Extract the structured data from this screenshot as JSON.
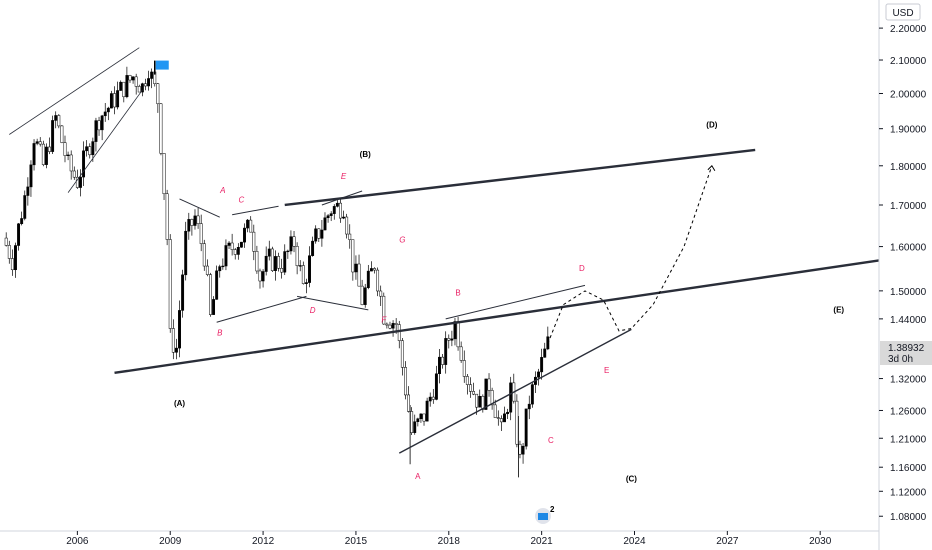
{
  "currency": "USD",
  "current_price_label": "1.38932",
  "timeframe_label": "3d 0h",
  "logo_badge": "2",
  "colors": {
    "up": "#000000",
    "down": "#ffffff",
    "wave_red": "#e91e63",
    "flag": "#2196f3"
  },
  "chart_data": {
    "type": "candlestick",
    "title": "",
    "xlabel": "",
    "ylabel": "",
    "scale": "log",
    "x_ticks": [
      "2006",
      "2009",
      "2012",
      "2015",
      "2018",
      "2021",
      "2024",
      "2027",
      "2030"
    ],
    "y_ticks": [
      "2.20000",
      "2.10000",
      "2.00000",
      "1.90000",
      "1.80000",
      "1.70000",
      "1.60000",
      "1.50000",
      "1.44000",
      "1.38932",
      "1.32000",
      "1.26000",
      "1.21000",
      "1.16000",
      "1.12000",
      "1.08000"
    ],
    "xlim": [
      2003.5,
      2031.9
    ],
    "ylim": [
      1.057,
      2.292
    ],
    "current_price": 1.38932,
    "price_path": [
      [
        2003.6,
        1.62
      ],
      [
        2003.9,
        1.57
      ],
      [
        2004.3,
        1.72
      ],
      [
        2004.6,
        1.88
      ],
      [
        2004.9,
        1.8
      ],
      [
        2005.3,
        1.93
      ],
      [
        2005.7,
        1.8
      ],
      [
        2006.0,
        1.76
      ],
      [
        2006.4,
        1.86
      ],
      [
        2006.7,
        1.93
      ],
      [
        2007.0,
        1.96
      ],
      [
        2007.4,
        2.01
      ],
      [
        2007.8,
        2.05
      ],
      [
        2008.1,
        2.02
      ],
      [
        2008.3,
        2.08
      ],
      [
        2008.6,
        1.98
      ],
      [
        2008.9,
        1.62
      ],
      [
        2009.0,
        1.4
      ],
      [
        2009.2,
        1.38
      ],
      [
        2009.5,
        1.62
      ],
      [
        2009.8,
        1.67
      ],
      [
        2010.1,
        1.58
      ],
      [
        2010.3,
        1.44
      ],
      [
        2010.6,
        1.56
      ],
      [
        2010.9,
        1.59
      ],
      [
        2011.3,
        1.62
      ],
      [
        2011.6,
        1.65
      ],
      [
        2011.9,
        1.53
      ],
      [
        2012.2,
        1.57
      ],
      [
        2012.6,
        1.56
      ],
      [
        2013.0,
        1.61
      ],
      [
        2013.3,
        1.51
      ],
      [
        2013.7,
        1.62
      ],
      [
        2014.2,
        1.69
      ],
      [
        2014.6,
        1.7
      ],
      [
        2014.9,
        1.56
      ],
      [
        2015.2,
        1.48
      ],
      [
        2015.6,
        1.56
      ],
      [
        2015.9,
        1.45
      ],
      [
        2016.3,
        1.43
      ],
      [
        2016.6,
        1.3
      ],
      [
        2016.8,
        1.22
      ],
      [
        2017.2,
        1.25
      ],
      [
        2017.6,
        1.32
      ],
      [
        2018.0,
        1.4
      ],
      [
        2018.2,
        1.43
      ],
      [
        2018.6,
        1.32
      ],
      [
        2019.0,
        1.27
      ],
      [
        2019.3,
        1.31
      ],
      [
        2019.7,
        1.22
      ],
      [
        2020.0,
        1.3
      ],
      [
        2020.3,
        1.17
      ],
      [
        2020.6,
        1.28
      ],
      [
        2020.9,
        1.33
      ],
      [
        2021.2,
        1.389
      ]
    ],
    "projection": [
      [
        2021.2,
        1.389
      ],
      [
        2021.7,
        1.47
      ],
      [
        2022.4,
        1.5
      ],
      [
        2023.0,
        1.48
      ],
      [
        2023.5,
        1.415
      ],
      [
        2023.9,
        1.42
      ],
      [
        2024.6,
        1.47
      ],
      [
        2025.6,
        1.6
      ],
      [
        2026.5,
        1.8
      ]
    ],
    "trendlines": [
      {
        "name": "primary-support-line",
        "points": [
          [
            2007.2,
            1.331
          ],
          [
            2031.9,
            1.568
          ]
        ],
        "width": 2.4
      },
      {
        "name": "primary-resistance-line",
        "points": [
          [
            2012.7,
            1.7
          ],
          [
            2027.9,
            1.842
          ]
        ],
        "width": 2.4
      },
      {
        "name": "wave-c-lower-line",
        "points": [
          [
            2016.4,
            1.184
          ],
          [
            2023.9,
            1.418
          ]
        ],
        "width": 1.4
      },
      {
        "name": "wave-c-upper-line",
        "points": [
          [
            2017.9,
            1.44
          ],
          [
            2022.4,
            1.512
          ]
        ],
        "width": 1.0
      },
      {
        "name": "early-wedge-upper",
        "points": [
          [
            2003.8,
            1.884
          ],
          [
            2008.0,
            2.138
          ]
        ],
        "width": 0.8
      },
      {
        "name": "early-wedge-lower",
        "points": [
          [
            2005.7,
            1.731
          ],
          [
            2008.1,
            2.01
          ]
        ],
        "width": 0.8
      },
      {
        "name": "triangle-lower-1",
        "points": [
          [
            2010.5,
            1.433
          ],
          [
            2013.4,
            1.488
          ]
        ],
        "width": 1.0
      },
      {
        "name": "triangle-lower-2",
        "points": [
          [
            2013.1,
            1.488
          ],
          [
            2015.4,
            1.459
          ]
        ],
        "width": 1.0
      },
      {
        "name": "triangle-top-1",
        "points": [
          [
            2009.3,
            1.715
          ],
          [
            2010.6,
            1.67
          ]
        ],
        "width": 1.0
      },
      {
        "name": "triangle-top-2",
        "points": [
          [
            2011.0,
            1.676
          ],
          [
            2012.5,
            1.697
          ]
        ],
        "width": 1.0
      },
      {
        "name": "triangle-top-3",
        "points": [
          [
            2013.9,
            1.7
          ],
          [
            2015.2,
            1.735
          ]
        ],
        "width": 1.0
      }
    ],
    "annotations_primary": [
      {
        "text": "(A)",
        "x": 2009.3,
        "y": 1.268
      },
      {
        "text": "(B)",
        "x": 2015.3,
        "y": 1.823
      },
      {
        "text": "(C)",
        "x": 2023.9,
        "y": 1.136
      },
      {
        "text": "(D)",
        "x": 2026.5,
        "y": 1.903
      },
      {
        "text": "(E)",
        "x": 2030.6,
        "y": 1.453
      }
    ],
    "annotations_secondary": [
      {
        "text": "A",
        "x": 2010.7,
        "y": 1.73,
        "italic": true
      },
      {
        "text": "B",
        "x": 2010.6,
        "y": 1.405,
        "italic": true
      },
      {
        "text": "C",
        "x": 2011.3,
        "y": 1.706,
        "italic": true
      },
      {
        "text": "D",
        "x": 2013.6,
        "y": 1.452,
        "italic": true
      },
      {
        "text": "E",
        "x": 2014.6,
        "y": 1.766,
        "italic": true
      },
      {
        "text": "F",
        "x": 2015.9,
        "y": 1.432,
        "italic": true
      },
      {
        "text": "G",
        "x": 2016.5,
        "y": 1.61,
        "italic": true
      },
      {
        "text": "A",
        "x": 2017.0,
        "y": 1.14,
        "italic": false
      },
      {
        "text": "B",
        "x": 2018.3,
        "y": 1.49,
        "italic": false
      },
      {
        "text": "C",
        "x": 2021.3,
        "y": 1.202,
        "italic": false
      },
      {
        "text": "D",
        "x": 2022.3,
        "y": 1.544,
        "italic": false
      },
      {
        "text": "E",
        "x": 2023.1,
        "y": 1.331,
        "italic": false
      }
    ]
  }
}
